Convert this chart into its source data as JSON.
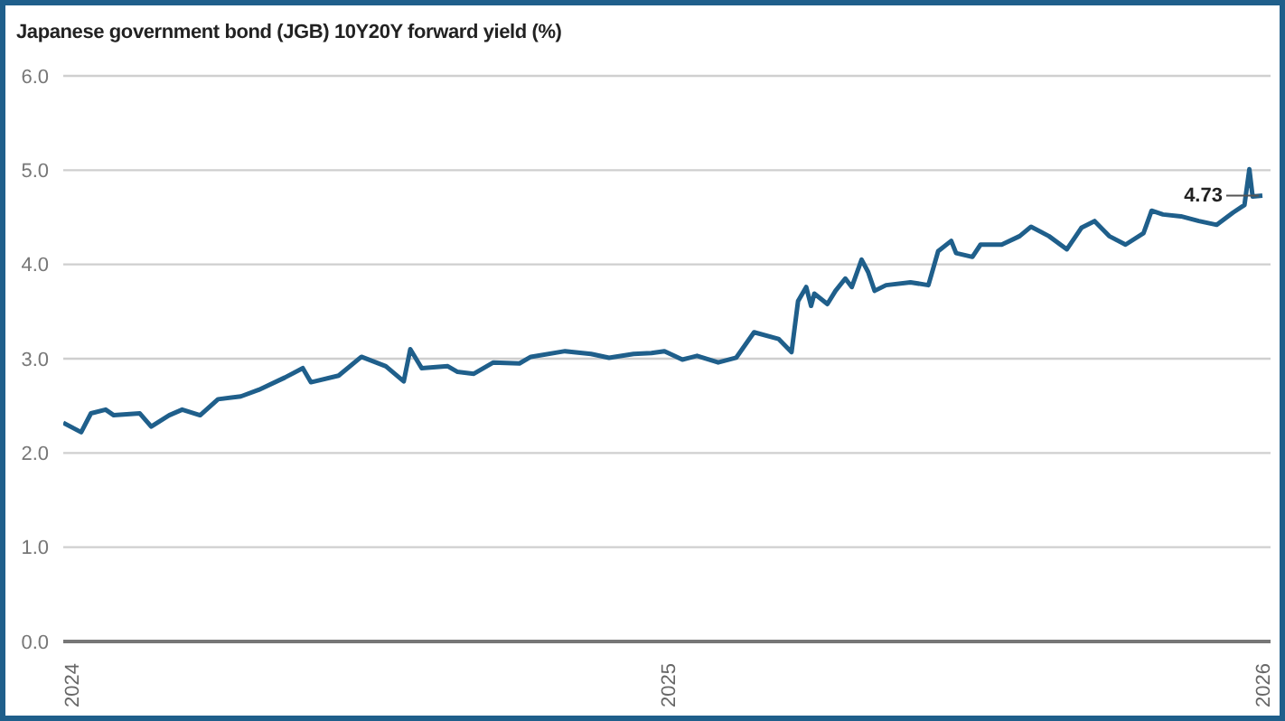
{
  "chart_data": {
    "type": "line",
    "title": "Japanese government bond (JGB) 10Y20Y forward yield (%)",
    "x": [
      "2023-12-26",
      "2024-01-06",
      "2024-01-12",
      "2024-01-21",
      "2024-01-26",
      "2024-02-11",
      "2024-02-18",
      "2024-02-29",
      "2024-03-08",
      "2024-03-19",
      "2024-03-30",
      "2024-04-13",
      "2024-04-24",
      "2024-05-10",
      "2024-05-21",
      "2024-05-26",
      "2024-06-12",
      "2024-06-26",
      "2024-07-11",
      "2024-07-22",
      "2024-07-26",
      "2024-08-02",
      "2024-08-18",
      "2024-08-24",
      "2024-09-03",
      "2024-09-15",
      "2024-10-01",
      "2024-10-08",
      "2024-10-29",
      "2024-11-14",
      "2024-11-25",
      "2024-12-10",
      "2024-12-21",
      "2024-12-29",
      "2025-01-09",
      "2025-01-18",
      "2025-01-31",
      "2025-02-11",
      "2025-02-22",
      "2025-03-09",
      "2025-03-17",
      "2025-03-21",
      "2025-03-26",
      "2025-03-29",
      "2025-03-31",
      "2025-04-08",
      "2025-04-13",
      "2025-04-19",
      "2025-04-23",
      "2025-04-29",
      "2025-05-03",
      "2025-05-07",
      "2025-05-14",
      "2025-05-29",
      "2025-06-09",
      "2025-06-15",
      "2025-06-23",
      "2025-06-26",
      "2025-07-06",
      "2025-07-11",
      "2025-07-24",
      "2025-08-04",
      "2025-08-11",
      "2025-08-22",
      "2025-09-02",
      "2025-09-11",
      "2025-09-19",
      "2025-09-28",
      "2025-10-08",
      "2025-10-19",
      "2025-10-24",
      "2025-10-31",
      "2025-11-11",
      "2025-11-22",
      "2025-12-03",
      "2025-12-13",
      "2025-12-20",
      "2025-12-23",
      "2025-12-25",
      "2025-12-31"
    ],
    "series": [
      {
        "color": "#1f5f8b",
        "values": [
          2.32,
          2.22,
          2.42,
          2.46,
          2.4,
          2.42,
          2.28,
          2.4,
          2.46,
          2.4,
          2.57,
          2.6,
          2.67,
          2.8,
          2.9,
          2.75,
          2.82,
          3.02,
          2.92,
          2.76,
          3.1,
          2.9,
          2.92,
          2.86,
          2.84,
          2.96,
          2.95,
          3.02,
          3.08,
          3.05,
          3.01,
          3.05,
          3.06,
          3.08,
          2.99,
          3.03,
          2.96,
          3.01,
          3.28,
          3.21,
          3.07,
          3.61,
          3.76,
          3.56,
          3.69,
          3.58,
          3.72,
          3.85,
          3.76,
          4.05,
          3.92,
          3.72,
          3.78,
          3.81,
          3.78,
          4.14,
          4.25,
          4.12,
          4.08,
          4.21,
          4.21,
          4.3,
          4.4,
          4.3,
          4.16,
          4.39,
          4.46,
          4.3,
          4.21,
          4.33,
          4.57,
          4.53,
          4.51,
          4.46,
          4.42,
          4.55,
          4.63,
          5.01,
          4.72,
          4.73
        ]
      }
    ],
    "xlim": [
      "2023-12-26",
      "2026-01-05"
    ],
    "xticks": [
      {
        "value": "2024-01-01",
        "label": "2024"
      },
      {
        "value": "2025-01-01",
        "label": "2025"
      },
      {
        "value": "2026-01-01",
        "label": "2026"
      }
    ],
    "ylim": [
      0,
      6
    ],
    "yticks": [
      {
        "value": 0,
        "label": "0.0"
      },
      {
        "value": 1,
        "label": "1.0"
      },
      {
        "value": 2,
        "label": "2.0"
      },
      {
        "value": 3,
        "label": "3.0"
      },
      {
        "value": 4,
        "label": "4.0"
      },
      {
        "value": 5,
        "label": "5.0"
      },
      {
        "value": 6,
        "label": "6.0"
      }
    ],
    "grid": "y",
    "annotations": [
      {
        "text": "4.73",
        "x": "2025-12-31",
        "y": 4.73
      }
    ]
  }
}
